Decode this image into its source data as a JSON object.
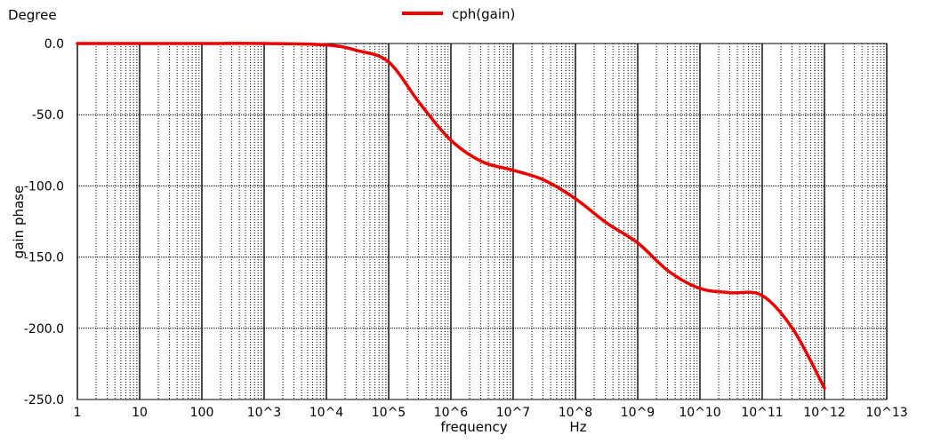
{
  "chart_data": {
    "type": "line",
    "y_unit_label": "Degree",
    "ylabel": "gain phase",
    "xlabel": "frequency",
    "x_unit_label": "Hz",
    "x_scale": "log",
    "xlim": [
      1,
      10000000000000
    ],
    "ylim": [
      -250,
      0
    ],
    "grid": true,
    "legend_position": "top-center",
    "x_ticks": [
      {
        "value": 1,
        "label": "1"
      },
      {
        "value": 10,
        "label": "10"
      },
      {
        "value": 100,
        "label": "100"
      },
      {
        "value": 1000,
        "label": "10^3"
      },
      {
        "value": 10000,
        "label": "10^4"
      },
      {
        "value": 100000,
        "label": "10^5"
      },
      {
        "value": 1000000,
        "label": "10^6"
      },
      {
        "value": 10000000,
        "label": "10^7"
      },
      {
        "value": 100000000,
        "label": "10^8"
      },
      {
        "value": 1000000000,
        "label": "10^9"
      },
      {
        "value": 10000000000,
        "label": "10^10"
      },
      {
        "value": 100000000000,
        "label": "10^11"
      },
      {
        "value": 1000000000000,
        "label": "10^12"
      },
      {
        "value": 10000000000000,
        "label": "10^13"
      }
    ],
    "y_ticks": [
      {
        "value": 0,
        "label": "0.0"
      },
      {
        "value": -50,
        "label": "-50.0"
      },
      {
        "value": -100,
        "label": "-100.0"
      },
      {
        "value": -150,
        "label": "-150.0"
      },
      {
        "value": -200,
        "label": "-200.0"
      },
      {
        "value": -250,
        "label": "-250.0"
      }
    ],
    "series": [
      {
        "name": "cph(gain)",
        "color": "#ee0000",
        "x": [
          1,
          10,
          100,
          1000,
          10000,
          31620,
          100000,
          316200,
          1000000,
          3162000,
          10000000,
          31620000,
          100000000,
          316200000,
          1000000000,
          3162000000,
          10000000000,
          31620000000,
          100000000000,
          316200000000,
          1000000000000
        ],
        "y": [
          0,
          0,
          0,
          0,
          -1,
          -5,
          -13,
          -42,
          -68,
          -83,
          -89,
          -96,
          -109,
          -126,
          -140,
          -160,
          -172,
          -175,
          -177,
          -201,
          -242
        ]
      }
    ]
  }
}
